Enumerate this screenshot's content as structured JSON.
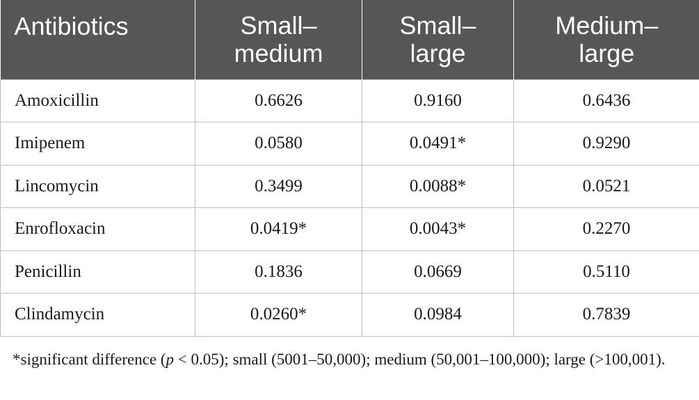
{
  "table": {
    "headers": [
      {
        "line1": "Antibiotics",
        "line2": ""
      },
      {
        "line1": "Small–",
        "line2": "medium"
      },
      {
        "line1": "Small–",
        "line2": "large"
      },
      {
        "line1": "Medium–",
        "line2": "large"
      }
    ],
    "rows": [
      {
        "antibiotic": "Amoxicillin",
        "small_medium": "0.6626",
        "small_large": "0.9160",
        "medium_large": "0.6436"
      },
      {
        "antibiotic": "Imipenem",
        "small_medium": "0.0580",
        "small_large": "0.0491*",
        "medium_large": "0.9290"
      },
      {
        "antibiotic": "Lincomycin",
        "small_medium": "0.3499",
        "small_large": "0.0088*",
        "medium_large": "0.0521"
      },
      {
        "antibiotic": "Enrofloxacin",
        "small_medium": "0.0419*",
        "small_large": "0.0043*",
        "medium_large": "0.2270"
      },
      {
        "antibiotic": "Penicillin",
        "small_medium": "0.1836",
        "small_large": "0.0669",
        "medium_large": "0.5110"
      },
      {
        "antibiotic": "Clindamycin",
        "small_medium": "0.0260*",
        "small_large": "0.0984",
        "medium_large": "0.7839"
      }
    ]
  },
  "footnote": {
    "before_p": "*significant difference (",
    "p": "p",
    "after_p": " < 0.05); small (5001–50,000); medium (50,001–100,000); large (>100,001)."
  },
  "colors": {
    "header_bg": "#565657",
    "header_text": "#ffffff",
    "grid": "#bdbdbd"
  }
}
